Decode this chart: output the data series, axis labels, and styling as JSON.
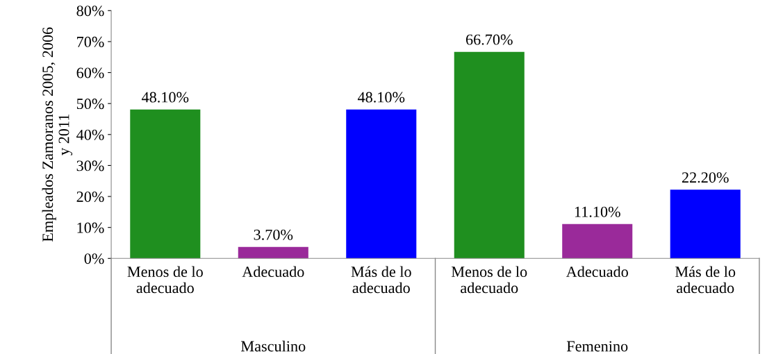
{
  "chart_data": {
    "type": "bar",
    "ylabel": "Empleados Zamoranos 2005, 2006\ny 2011",
    "categories": [
      "Menos de lo\nadecuado",
      "Adecuado",
      "Más de lo\nadecuado",
      "Menos de lo\nadecuado",
      "Adecuado",
      "Más de lo\nadecuado"
    ],
    "values": [
      48.1,
      3.7,
      48.1,
      66.7,
      11.1,
      22.2
    ],
    "colors": [
      "#1f8f1f",
      "#9a2a9a",
      "#0000ff",
      "#1f8f1f",
      "#9a2a9a",
      "#0000ff"
    ],
    "value_labels": [
      "48.10%",
      "3.70%",
      "48.10%",
      "66.70%",
      "11.10%",
      "22.20%"
    ],
    "ylim": [
      0,
      80
    ],
    "yticks": [
      {
        "value": 0,
        "label": "0%"
      },
      {
        "value": 10,
        "label": "10%"
      },
      {
        "value": 20,
        "label": "20%"
      },
      {
        "value": 30,
        "label": "30%"
      },
      {
        "value": 40,
        "label": "40%"
      },
      {
        "value": 50,
        "label": "50%"
      },
      {
        "value": 60,
        "label": "60%"
      },
      {
        "value": 70,
        "label": "70%"
      },
      {
        "value": 80,
        "label": "80%"
      }
    ],
    "annotations": [
      "Masculino",
      "Femenino"
    ],
    "grid": false
  }
}
